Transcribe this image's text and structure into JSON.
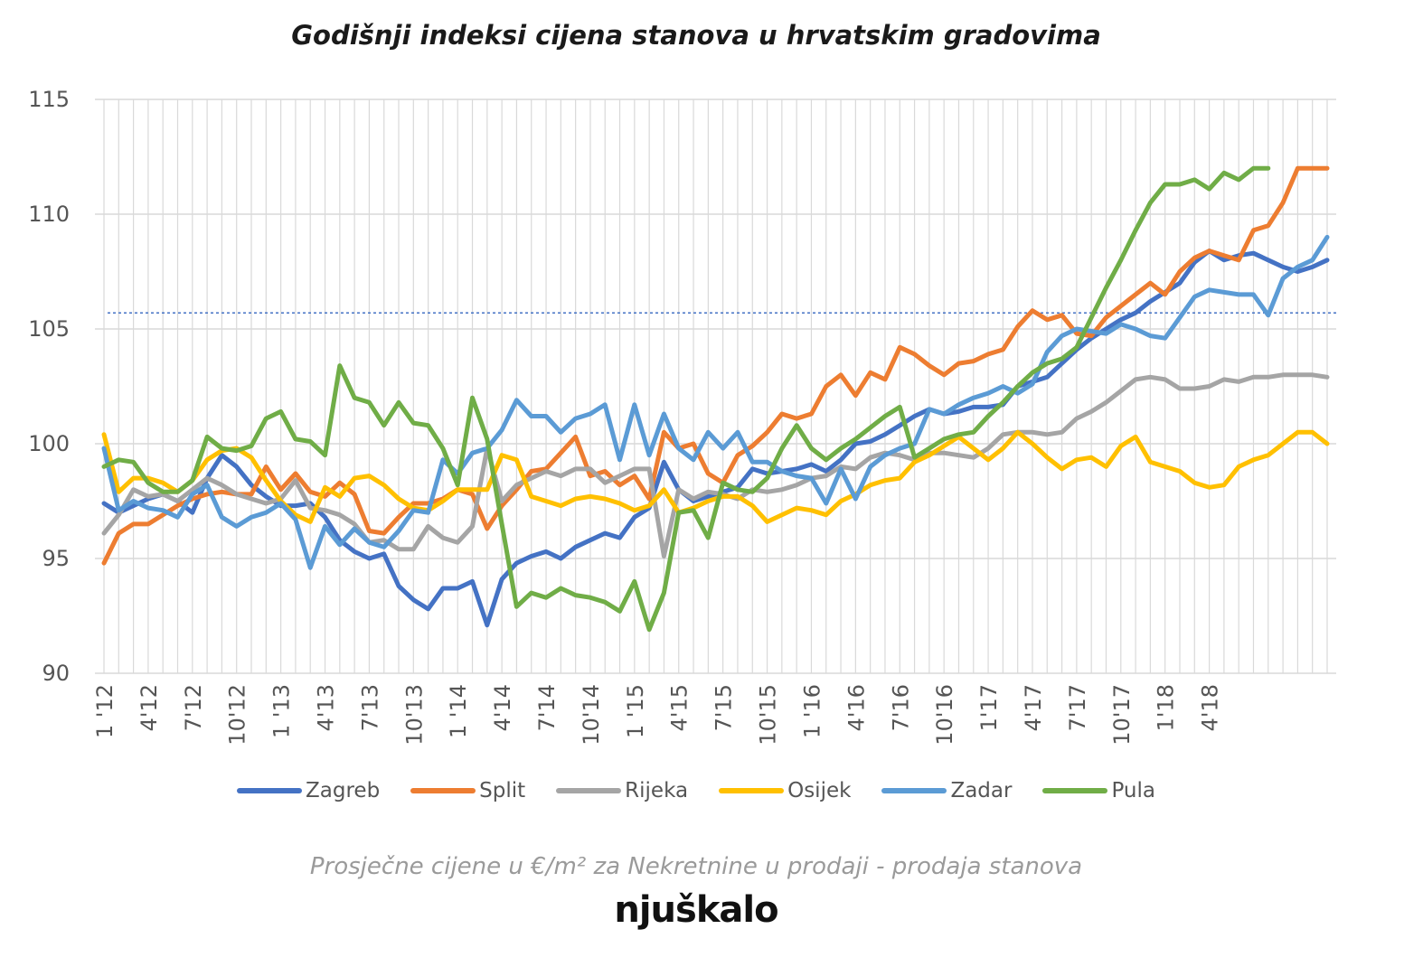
{
  "chart_data": {
    "type": "line",
    "title": "Godišnji indeksi cijena stanova u hrvatskim gradovima",
    "subtitle": "Prosječne cijene u €/m² za Nekretnine u prodaji - prodaja stanova",
    "brand": "njuškalo",
    "ylim": [
      90,
      115
    ],
    "yticks": [
      90,
      95,
      100,
      105,
      110,
      115
    ],
    "reference_line": 105.7,
    "x_tick_labels": [
      "1 '12",
      "4'12",
      "7'12",
      "10'12",
      "1 '13",
      "4'13",
      "7'13",
      "10'13",
      "1 '14",
      "4'14",
      "7'14",
      "10'14",
      "1 '15",
      "4'15",
      "7'15",
      "10'15",
      "1 '16",
      "4'16",
      "7'16",
      "10'16",
      "1'17",
      "4'17",
      "7'17",
      "10'17",
      "1'18",
      "4'18"
    ],
    "grid": "on",
    "legend_position": "bottom",
    "series": [
      {
        "name": "Zagreb",
        "color": "#4472c4",
        "values": [
          97.4,
          97.0,
          97.3,
          97.6,
          97.8,
          97.5,
          97.0,
          98.5,
          99.5,
          99.0,
          98.2,
          97.7,
          97.3,
          97.3,
          97.4,
          96.8,
          95.8,
          95.3,
          95.0,
          95.2,
          93.8,
          93.2,
          92.8,
          93.7,
          93.7,
          94.0,
          92.1,
          94.1,
          94.8,
          95.1,
          95.3,
          95.0,
          95.5,
          95.8,
          96.1,
          95.9,
          96.8,
          97.2,
          99.2,
          98.0,
          97.5,
          97.7,
          97.9,
          98.1,
          98.9,
          98.7,
          98.8,
          98.9,
          99.1,
          98.8,
          99.3,
          100.0,
          100.1,
          100.4,
          100.8,
          101.2,
          101.5,
          101.3,
          101.4,
          101.6,
          101.6,
          101.7,
          102.5,
          102.7,
          102.9,
          103.5,
          104.1,
          104.6,
          105.0,
          105.4,
          105.7,
          106.2,
          106.6,
          107.0,
          107.9,
          108.4,
          108.0,
          108.2,
          108.3,
          108.0,
          107.7,
          107.5,
          107.7,
          108.0
        ]
      },
      {
        "name": "Split",
        "color": "#ed7d31",
        "values": [
          94.8,
          96.1,
          96.5,
          96.5,
          96.9,
          97.3,
          97.6,
          97.8,
          97.9,
          97.8,
          97.8,
          99.0,
          98.0,
          98.7,
          97.9,
          97.7,
          98.3,
          97.8,
          96.2,
          96.1,
          96.8,
          97.4,
          97.4,
          97.6,
          98.0,
          97.8,
          96.3,
          97.3,
          98.0,
          98.8,
          98.9,
          99.6,
          100.3,
          98.6,
          98.8,
          98.2,
          98.6,
          97.6,
          100.5,
          99.8,
          100.0,
          98.7,
          98.3,
          99.5,
          99.9,
          100.5,
          101.3,
          101.1,
          101.3,
          102.5,
          103.0,
          102.1,
          103.1,
          102.8,
          104.2,
          103.9,
          103.4,
          103.0,
          103.5,
          103.6,
          103.9,
          104.1,
          105.1,
          105.8,
          105.4,
          105.6,
          104.8,
          104.7,
          105.5,
          106.0,
          106.5,
          107.0,
          106.5,
          107.5,
          108.1,
          108.4,
          108.2,
          108.0,
          109.3,
          109.5,
          110.5,
          112.0,
          112.0,
          112.0
        ]
      },
      {
        "name": "Rijeka",
        "color": "#a5a5a5",
        "values": [
          96.1,
          96.9,
          98.0,
          97.7,
          97.8,
          97.5,
          98.0,
          98.5,
          98.2,
          97.8,
          97.6,
          97.4,
          97.6,
          98.4,
          97.2,
          97.1,
          96.9,
          96.5,
          95.7,
          95.8,
          95.4,
          95.4,
          96.4,
          95.9,
          95.7,
          96.4,
          99.8,
          97.5,
          98.2,
          98.5,
          98.8,
          98.6,
          98.9,
          98.9,
          98.3,
          98.6,
          98.9,
          98.9,
          95.1,
          98.0,
          97.6,
          97.9,
          97.8,
          97.6,
          98.0,
          97.9,
          98.0,
          98.2,
          98.5,
          98.6,
          99.0,
          98.9,
          99.4,
          99.6,
          99.5,
          99.3,
          99.6,
          99.6,
          99.5,
          99.4,
          99.8,
          100.4,
          100.5,
          100.5,
          100.4,
          100.5,
          101.1,
          101.4,
          101.8,
          102.3,
          102.8,
          102.9,
          102.8,
          102.4,
          102.4,
          102.5,
          102.8,
          102.7,
          102.9,
          102.9,
          103.0,
          103.0,
          103.0,
          102.9
        ]
      },
      {
        "name": "Osijek",
        "color": "#ffc000",
        "values": [
          100.4,
          97.9,
          98.5,
          98.5,
          98.3,
          97.9,
          98.4,
          99.3,
          99.7,
          99.8,
          99.4,
          98.4,
          97.5,
          96.9,
          96.6,
          98.1,
          97.7,
          98.5,
          98.6,
          98.2,
          97.6,
          97.2,
          97.1,
          97.5,
          98.0,
          98.0,
          98.0,
          99.5,
          99.3,
          97.7,
          97.5,
          97.3,
          97.6,
          97.7,
          97.6,
          97.4,
          97.1,
          97.3,
          98.0,
          97.0,
          97.2,
          97.5,
          97.7,
          97.7,
          97.3,
          96.6,
          96.9,
          97.2,
          97.1,
          96.9,
          97.5,
          97.8,
          98.2,
          98.4,
          98.5,
          99.2,
          99.5,
          99.9,
          100.3,
          99.8,
          99.3,
          99.8,
          100.5,
          100.0,
          99.4,
          98.9,
          99.3,
          99.4,
          99.0,
          99.9,
          100.3,
          99.2,
          99.0,
          98.8,
          98.3,
          98.1,
          98.2,
          99.0,
          99.3,
          99.5,
          100.0,
          100.5,
          100.5,
          100.0
        ]
      },
      {
        "name": "Zadar",
        "color": "#5b9bd5",
        "values": [
          99.8,
          97.1,
          97.5,
          97.2,
          97.1,
          96.8,
          97.8,
          98.2,
          96.8,
          96.4,
          96.8,
          97.0,
          97.4,
          96.7,
          94.6,
          96.4,
          95.6,
          96.3,
          95.7,
          95.5,
          96.2,
          97.1,
          97.0,
          99.3,
          98.7,
          99.6,
          99.8,
          100.6,
          101.9,
          101.2,
          101.2,
          100.5,
          101.1,
          101.3,
          101.7,
          99.3,
          101.7,
          99.5,
          101.3,
          99.8,
          99.3,
          100.5,
          99.8,
          100.5,
          99.2,
          99.2,
          98.8,
          98.6,
          98.5,
          97.4,
          98.9,
          97.6,
          99.0,
          99.5,
          99.8,
          100.0,
          101.5,
          101.3,
          101.7,
          102.0,
          102.2,
          102.5,
          102.2,
          102.6,
          104.0,
          104.7,
          105.0,
          104.9,
          104.8,
          105.2,
          105.0,
          104.7,
          104.6,
          105.5,
          106.4,
          106.7,
          106.6,
          106.5,
          106.5,
          105.6,
          107.2,
          107.7,
          108.0,
          109.0
        ]
      },
      {
        "name": "Pula",
        "color": "#70ad47",
        "values": [
          99.0,
          99.3,
          99.2,
          98.3,
          97.9,
          97.9,
          98.4,
          100.3,
          99.8,
          99.7,
          99.9,
          101.1,
          101.4,
          100.2,
          100.1,
          99.5,
          103.4,
          102.0,
          101.8,
          100.8,
          101.8,
          100.9,
          100.8,
          99.8,
          98.2,
          102.0,
          100.2,
          96.5,
          92.9,
          93.5,
          93.3,
          93.7,
          93.4,
          93.3,
          93.1,
          92.7,
          94.0,
          91.9,
          93.5,
          97.0,
          97.1,
          95.9,
          98.3,
          98.0,
          97.9,
          98.5,
          99.8,
          100.8,
          99.8,
          99.3,
          99.8,
          100.2,
          100.7,
          101.2,
          101.6,
          99.4,
          99.8,
          100.2,
          100.4,
          100.5,
          101.2,
          101.8,
          102.5,
          103.1,
          103.5,
          103.7,
          104.2,
          105.5,
          106.8,
          108.0,
          109.3,
          110.5,
          111.3,
          111.3,
          111.5,
          111.1,
          111.8,
          111.5,
          112.0,
          112.0
        ]
      }
    ]
  }
}
